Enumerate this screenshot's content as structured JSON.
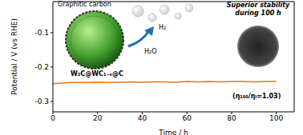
{
  "chart_data": {
    "type": "line",
    "x_label": "Time / h",
    "y_label": "Potential / V (vs RHE)",
    "x": [
      0,
      5,
      10,
      15,
      20,
      25,
      30,
      35,
      40,
      45,
      50,
      55,
      60,
      65,
      70,
      75,
      80,
      85,
      90,
      95,
      100
    ],
    "values": [
      -0.248,
      -0.246,
      -0.245,
      -0.245,
      -0.244,
      -0.245,
      -0.244,
      -0.243,
      -0.244,
      -0.243,
      -0.243,
      -0.244,
      -0.242,
      -0.243,
      -0.242,
      -0.243,
      -0.242,
      -0.242,
      -0.243,
      -0.242,
      -0.242
    ],
    "color": "#e8741e",
    "xlim": [
      0,
      108
    ],
    "xticks": [
      0,
      20,
      40,
      60,
      80,
      100
    ],
    "ylim": [
      -0.33,
      -0.01
    ],
    "yticks": [
      -0.3,
      -0.2,
      -0.1
    ],
    "grid": false,
    "annotations": [
      "Graphitic carbon",
      "H₂",
      "H₂O",
      "Superior stability during 100 h",
      "W₂C@WC₁₋ₓ@C",
      "(η₁₀₀/ηᵢ=1.03)"
    ]
  }
}
